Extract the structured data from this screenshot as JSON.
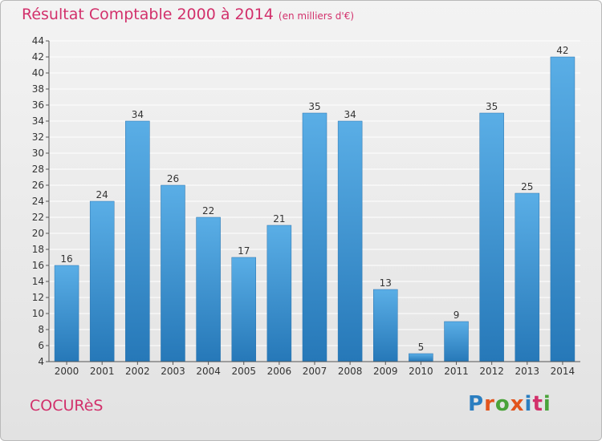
{
  "header": {
    "title": "Résultat Comptable 2000 à 2014",
    "unit": "(en milliers d'€)"
  },
  "commune": "COCURèS",
  "logo": {
    "text": "Proxiti",
    "letter_colors": [
      "#2b7ec0",
      "#e2541d",
      "#4aa33a",
      "#e2541d",
      "#2b7ec0",
      "#d2306b",
      "#4aa33a"
    ]
  },
  "colors": {
    "bar_top": "#5aaee6",
    "bar_bottom": "#2678b8",
    "grid": "#ffffff",
    "title": "#d2306b"
  },
  "chart_data": {
    "type": "bar",
    "title": "Résultat Comptable 2000 à 2014",
    "subtitle": "(en milliers d'€)",
    "categories": [
      "2000",
      "2001",
      "2002",
      "2003",
      "2004",
      "2005",
      "2006",
      "2007",
      "2008",
      "2009",
      "2010",
      "2011",
      "2012",
      "2013",
      "2014"
    ],
    "values": [
      16,
      24,
      34,
      26,
      22,
      17,
      21,
      35,
      34,
      13,
      5,
      9,
      35,
      25,
      42
    ],
    "ylim": [
      4,
      44
    ],
    "yticks": [
      4,
      6,
      8,
      10,
      12,
      14,
      16,
      18,
      20,
      22,
      24,
      26,
      28,
      30,
      32,
      34,
      36,
      38,
      40,
      42,
      44
    ],
    "grid": true,
    "data_labels": true
  }
}
